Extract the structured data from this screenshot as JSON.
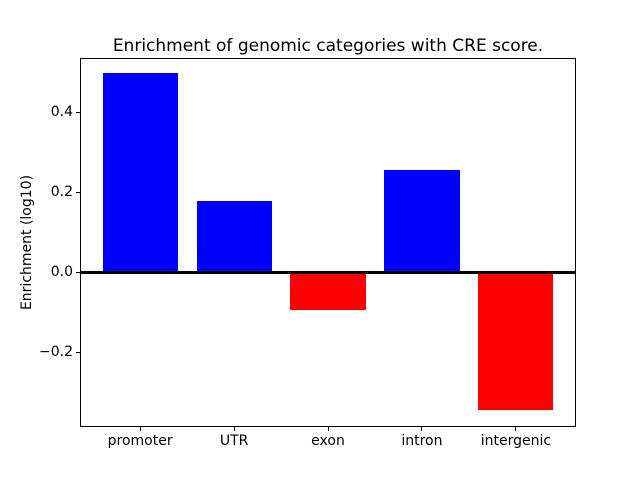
{
  "chart_data": {
    "type": "bar",
    "title": "Enrichment of genomic categories with CRE score.",
    "ylabel": "Enrichment (log10)",
    "xlabel": "",
    "categories": [
      "promoter",
      "UTR",
      "exon",
      "intron",
      "intergenic"
    ],
    "values": [
      0.5,
      0.18,
      -0.093,
      0.258,
      -0.343
    ],
    "bar_colors": [
      "#0000ff",
      "#0000ff",
      "#ff0000",
      "#0000ff",
      "#ff0000"
    ],
    "positive_color": "#0000ff",
    "negative_color": "#ff0000",
    "yticks": [
      0.4,
      0.2,
      0.0,
      -0.2
    ],
    "ytick_labels": [
      "0.4",
      "0.2",
      "0.0",
      "−0.2"
    ],
    "ylim": [
      -0.386,
      0.537
    ],
    "xlim": [
      -0.64,
      4.64
    ],
    "bar_width": 0.8,
    "zero_line": true,
    "grid": false,
    "legend_position": "none",
    "frame_color": "#000000",
    "text_color": "#000000",
    "background_color": "#ffffff"
  }
}
